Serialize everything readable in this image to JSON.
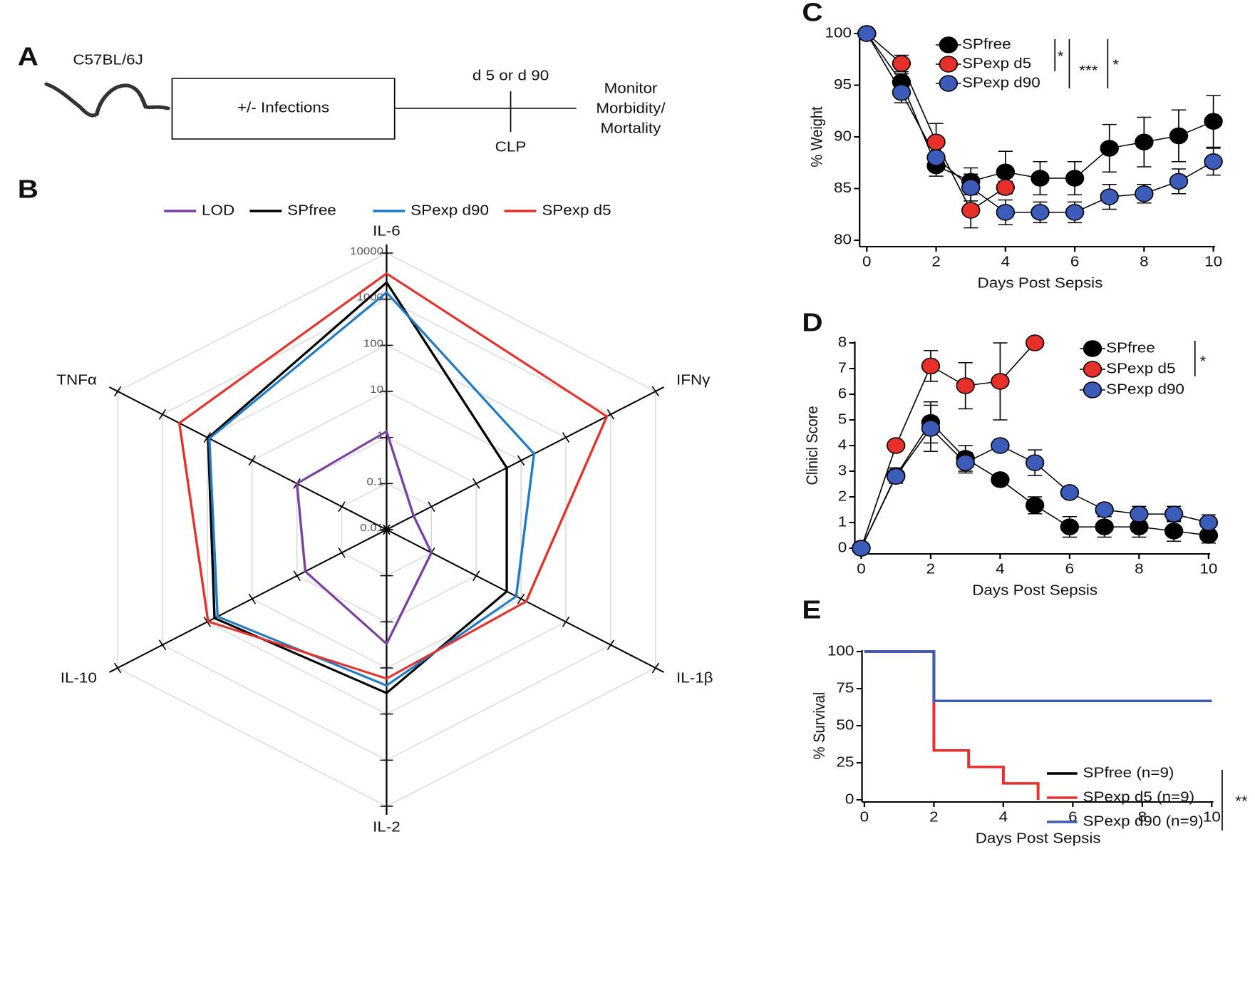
{
  "diagram": {
    "panel": "A",
    "mouse_label": "C57BL/6J",
    "box": "+/- Infections",
    "timepoint": "d 5 or d 90",
    "procedure": "CLP",
    "outcome": [
      "Monitor",
      "Morbidity/",
      "Mortality"
    ]
  },
  "chart_data": [
    {
      "type": "radar",
      "panel": "B",
      "log_scale": true,
      "categories": [
        "IL-6",
        "IFNγ",
        "IL-1β",
        "IL-2",
        "IL-10",
        "TNFα"
      ],
      "ylim": [
        0.01,
        10000
      ],
      "yticks": [
        0.01,
        0.1,
        1,
        10,
        100,
        1000,
        10000
      ],
      "grid": true,
      "series": [
        {
          "name": "LOD",
          "color": "#7b3fa0",
          "values": [
            1.35,
            0.04,
            0.1,
            3,
            0.65,
            1
          ]
        },
        {
          "name": "SPfree",
          "color": "#000000",
          "values": [
            2300,
            4.8,
            4.8,
            35,
            69,
            96
          ]
        },
        {
          "name": "SPexp d90",
          "color": "#1f7bc4",
          "values": [
            1400,
            19.5,
            7.8,
            24,
            59,
            90
          ]
        },
        {
          "name": "SPexp d5",
          "color": "#e8302a",
          "values": [
            3600,
            820,
            13,
            17,
            96,
            420
          ]
        }
      ]
    },
    {
      "type": "line",
      "panel": "C",
      "x_label": "Days Post Sepsis",
      "y_label": "% Weight",
      "x": [
        0,
        1,
        2,
        3,
        4,
        5,
        6,
        7,
        8,
        9,
        10
      ],
      "xlim": [
        0,
        10
      ],
      "xticks": [
        0,
        2,
        4,
        6,
        8,
        10
      ],
      "ylim": [
        80,
        100
      ],
      "yticks": [
        80,
        85,
        90,
        95,
        100
      ],
      "series": [
        {
          "name": "SPfree",
          "color": "#000000",
          "values": [
            100,
            95.3,
            87.2,
            85.7,
            86.6,
            86.0,
            86.0,
            88.9,
            89.5,
            90.1,
            91.5
          ],
          "errors": [
            null,
            0.8,
            1.0,
            1.3,
            2.0,
            1.6,
            1.6,
            2.3,
            2.4,
            2.5,
            2.5
          ]
        },
        {
          "name": "SPexp d5",
          "color": "#e8302a",
          "values": [
            100,
            97.1,
            89.5,
            82.9,
            85.1,
            null,
            null,
            null,
            null,
            null,
            null
          ],
          "errors": [
            null,
            0.8,
            1.8,
            1.7,
            0.6,
            null,
            null,
            null,
            null,
            null,
            null
          ]
        },
        {
          "name": "SPexp d90",
          "color": "#3b5cb8",
          "values": [
            100,
            94.3,
            88.0,
            85.1,
            82.7,
            82.7,
            82.7,
            84.2,
            84.5,
            85.7,
            87.6
          ],
          "errors": [
            null,
            1.0,
            1.0,
            1.3,
            1.2,
            1.0,
            1.0,
            1.2,
            0.9,
            1.2,
            1.3
          ]
        }
      ],
      "annotations": [
        "*",
        "***",
        "*"
      ]
    },
    {
      "type": "line",
      "panel": "D",
      "x_label": "Days Post Sepsis",
      "y_label": "Clinicl Score",
      "x": [
        0,
        1,
        2,
        3,
        4,
        5,
        6,
        7,
        8,
        9,
        10
      ],
      "xlim": [
        0,
        10
      ],
      "xticks": [
        0,
        2,
        4,
        6,
        8,
        10
      ],
      "ylim": [
        0,
        8
      ],
      "yticks": [
        0,
        1,
        2,
        3,
        4,
        5,
        6,
        7,
        8
      ],
      "series": [
        {
          "name": "SPfree",
          "color": "#000000",
          "values": [
            0,
            2.83,
            4.9,
            3.5,
            2.67,
            1.67,
            0.83,
            0.83,
            0.83,
            0.67,
            0.5
          ],
          "errors": [
            null,
            0.3,
            0.8,
            0.5,
            null,
            0.33,
            0.4,
            0.4,
            0.4,
            0.4,
            0.3
          ]
        },
        {
          "name": "SPexp d5",
          "color": "#e8302a",
          "values": [
            0,
            4,
            7.1,
            6.33,
            6.5,
            8,
            null,
            null,
            null,
            null,
            null
          ],
          "errors": [
            null,
            null,
            0.6,
            0.9,
            1.5,
            null,
            null,
            null,
            null,
            null,
            null
          ]
        },
        {
          "name": "SPexp d90",
          "color": "#3b5cb8",
          "values": [
            0,
            2.8,
            4.67,
            3.33,
            4,
            3.33,
            2.17,
            1.5,
            1.33,
            1.33,
            1.0
          ],
          "errors": [
            null,
            0.2,
            0.9,
            0.4,
            null,
            0.5,
            null,
            null,
            0.3,
            0.3,
            0.3
          ]
        }
      ],
      "annotations": [
        "*"
      ]
    },
    {
      "type": "step",
      "panel": "E",
      "x_label": "Days Post Sepsis",
      "y_label": "% Survival",
      "xlim": [
        0,
        10
      ],
      "xticks": [
        0,
        2,
        4,
        6,
        8,
        10
      ],
      "ylim": [
        0,
        100
      ],
      "yticks": [
        0,
        25,
        50,
        75,
        100
      ],
      "series": [
        {
          "name": "SPfree (n=9)",
          "color": "#000000",
          "x": [
            0,
            2,
            10
          ],
          "values": [
            100,
            66.7,
            66.7
          ]
        },
        {
          "name": "SPexp d5 (n=9)",
          "color": "#e8302a",
          "x": [
            0,
            2,
            3,
            4,
            5
          ],
          "values": [
            100,
            33.3,
            22.2,
            11.1,
            0
          ]
        },
        {
          "name": "SPexp d90 (n=9)",
          "color": "#3b5cb8",
          "x": [
            0,
            2,
            10
          ],
          "values": [
            100,
            66.7,
            66.7
          ]
        }
      ],
      "annotations": [
        "**"
      ]
    }
  ]
}
